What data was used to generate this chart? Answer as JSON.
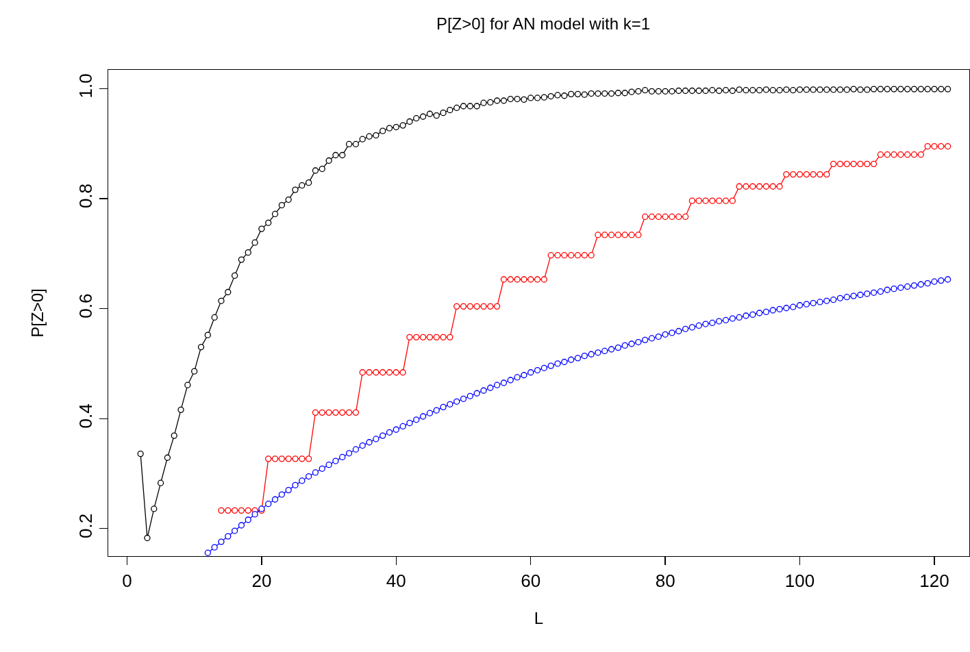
{
  "chart_data": {
    "type": "line",
    "title": "P[Z>0] for AN model with k=1",
    "xlabel": "L",
    "ylabel": "P[Z>0]",
    "marker": "circle",
    "line_style": "solid",
    "xlim": [
      -2.8,
      125.2
    ],
    "xticks": [
      0,
      20,
      40,
      60,
      80,
      100,
      120
    ],
    "ylim": [
      0.15,
      1.034
    ],
    "yticks": [
      {
        "value": 0.2,
        "label": "0.2"
      },
      {
        "value": 0.4,
        "label": "0.4"
      },
      {
        "value": 0.6,
        "label": "0.6"
      },
      {
        "value": 0.8,
        "label": "0.8"
      },
      {
        "value": 1.0,
        "label": "1.0"
      }
    ],
    "series": [
      {
        "color": "#000000",
        "x": [
          2,
          3,
          4,
          5,
          6,
          7,
          8,
          9,
          10,
          11,
          12,
          13,
          14,
          15,
          16,
          17,
          18,
          19,
          20,
          21,
          22,
          23,
          24,
          25,
          26,
          27,
          28,
          29,
          30,
          31,
          32,
          33,
          34,
          35,
          36,
          37,
          38,
          39,
          40,
          41,
          42,
          43,
          44,
          45,
          46,
          47,
          48,
          49,
          50,
          51,
          52,
          53,
          54,
          55,
          56,
          57,
          58,
          59,
          60,
          61,
          62,
          63,
          64,
          65,
          66,
          67,
          68,
          69,
          70,
          71,
          72,
          73,
          74,
          75,
          76,
          77,
          78,
          79,
          80,
          81,
          82,
          83,
          84,
          85,
          86,
          87,
          88,
          89,
          90,
          91,
          92,
          93,
          94,
          95,
          96,
          97,
          98,
          99,
          100,
          101,
          102,
          103,
          104,
          105,
          106,
          107,
          108,
          109,
          110,
          111,
          112,
          113,
          114,
          115,
          116,
          117,
          118,
          119,
          120,
          121,
          122
        ],
        "values": [
          0.336,
          0.183,
          0.236,
          0.283,
          0.329,
          0.369,
          0.416,
          0.461,
          0.486,
          0.53,
          0.552,
          0.584,
          0.614,
          0.63,
          0.66,
          0.689,
          0.702,
          0.72,
          0.745,
          0.756,
          0.772,
          0.788,
          0.798,
          0.816,
          0.824,
          0.829,
          0.851,
          0.854,
          0.869,
          0.879,
          0.879,
          0.899,
          0.899,
          0.908,
          0.913,
          0.915,
          0.923,
          0.928,
          0.93,
          0.933,
          0.94,
          0.946,
          0.949,
          0.954,
          0.951,
          0.956,
          0.961,
          0.965,
          0.968,
          0.968,
          0.968,
          0.974,
          0.975,
          0.978,
          0.978,
          0.981,
          0.981,
          0.98,
          0.983,
          0.983,
          0.984,
          0.986,
          0.988,
          0.987,
          0.99,
          0.99,
          0.989,
          0.991,
          0.991,
          0.991,
          0.991,
          0.992,
          0.992,
          0.994,
          0.995,
          0.997,
          0.995,
          0.995,
          0.995,
          0.995,
          0.996,
          0.996,
          0.996,
          0.996,
          0.996,
          0.997,
          0.996,
          0.997,
          0.996,
          0.998,
          0.997,
          0.997,
          0.997,
          0.998,
          0.997,
          0.997,
          0.998,
          0.997,
          0.998,
          0.998,
          0.998,
          0.998,
          0.998,
          0.998,
          0.998,
          0.998,
          0.999,
          0.998,
          0.998,
          0.999,
          0.999,
          0.999,
          0.999,
          0.999,
          0.999,
          0.999,
          0.999,
          0.999,
          0.999,
          0.999,
          0.999
        ]
      },
      {
        "color": "#ff0000",
        "x": [
          14,
          15,
          16,
          17,
          18,
          19,
          20,
          21,
          22,
          23,
          24,
          25,
          26,
          27,
          28,
          29,
          30,
          31,
          32,
          33,
          34,
          35,
          36,
          37,
          38,
          39,
          40,
          41,
          42,
          43,
          44,
          45,
          46,
          47,
          48,
          49,
          50,
          51,
          52,
          53,
          54,
          55,
          56,
          57,
          58,
          59,
          60,
          61,
          62,
          63,
          64,
          65,
          66,
          67,
          68,
          69,
          70,
          71,
          72,
          73,
          74,
          75,
          76,
          77,
          78,
          79,
          80,
          81,
          82,
          83,
          84,
          85,
          86,
          87,
          88,
          89,
          90,
          91,
          92,
          93,
          94,
          95,
          96,
          97,
          98,
          99,
          100,
          101,
          102,
          103,
          104,
          105,
          106,
          107,
          108,
          109,
          110,
          111,
          112,
          113,
          114,
          115,
          116,
          117,
          118,
          119,
          120,
          121,
          122
        ],
        "values": [
          0.233,
          0.233,
          0.233,
          0.233,
          0.233,
          0.233,
          0.233,
          0.327,
          0.327,
          0.327,
          0.327,
          0.327,
          0.327,
          0.327,
          0.411,
          0.411,
          0.411,
          0.411,
          0.411,
          0.411,
          0.411,
          0.484,
          0.484,
          0.484,
          0.484,
          0.484,
          0.484,
          0.484,
          0.548,
          0.548,
          0.548,
          0.548,
          0.548,
          0.548,
          0.548,
          0.604,
          0.604,
          0.604,
          0.604,
          0.604,
          0.604,
          0.604,
          0.653,
          0.653,
          0.653,
          0.653,
          0.653,
          0.653,
          0.653,
          0.697,
          0.697,
          0.697,
          0.697,
          0.697,
          0.697,
          0.697,
          0.734,
          0.734,
          0.734,
          0.734,
          0.734,
          0.734,
          0.734,
          0.767,
          0.767,
          0.767,
          0.767,
          0.767,
          0.767,
          0.767,
          0.796,
          0.796,
          0.796,
          0.796,
          0.796,
          0.796,
          0.796,
          0.822,
          0.822,
          0.822,
          0.822,
          0.822,
          0.822,
          0.822,
          0.844,
          0.844,
          0.844,
          0.844,
          0.844,
          0.844,
          0.844,
          0.863,
          0.863,
          0.863,
          0.863,
          0.863,
          0.863,
          0.863,
          0.88,
          0.88,
          0.88,
          0.88,
          0.88,
          0.88,
          0.88,
          0.895,
          0.895,
          0.895,
          0.895
        ]
      },
      {
        "color": "#0000ff",
        "x": [
          12,
          13,
          14,
          15,
          16,
          17,
          18,
          19,
          20,
          21,
          22,
          23,
          24,
          25,
          26,
          27,
          28,
          29,
          30,
          31,
          32,
          33,
          34,
          35,
          36,
          37,
          38,
          39,
          40,
          41,
          42,
          43,
          44,
          45,
          46,
          47,
          48,
          49,
          50,
          51,
          52,
          53,
          54,
          55,
          56,
          57,
          58,
          59,
          60,
          61,
          62,
          63,
          64,
          65,
          66,
          67,
          68,
          69,
          70,
          71,
          72,
          73,
          74,
          75,
          76,
          77,
          78,
          79,
          80,
          81,
          82,
          83,
          84,
          85,
          86,
          87,
          88,
          89,
          90,
          91,
          92,
          93,
          94,
          95,
          96,
          97,
          98,
          99,
          100,
          101,
          102,
          103,
          104,
          105,
          106,
          107,
          108,
          109,
          110,
          111,
          112,
          113,
          114,
          115,
          116,
          117,
          118,
          119,
          120,
          121,
          122
        ],
        "values": [
          0.156,
          0.166,
          0.176,
          0.186,
          0.196,
          0.206,
          0.216,
          0.226,
          0.236,
          0.245,
          0.253,
          0.262,
          0.27,
          0.279,
          0.287,
          0.295,
          0.302,
          0.309,
          0.316,
          0.323,
          0.33,
          0.337,
          0.344,
          0.351,
          0.357,
          0.363,
          0.369,
          0.375,
          0.38,
          0.386,
          0.392,
          0.398,
          0.404,
          0.41,
          0.415,
          0.421,
          0.426,
          0.431,
          0.436,
          0.441,
          0.446,
          0.451,
          0.456,
          0.461,
          0.465,
          0.47,
          0.475,
          0.479,
          0.484,
          0.488,
          0.492,
          0.496,
          0.5,
          0.503,
          0.507,
          0.51,
          0.514,
          0.517,
          0.52,
          0.523,
          0.526,
          0.529,
          0.533,
          0.536,
          0.539,
          0.543,
          0.546,
          0.549,
          0.553,
          0.556,
          0.559,
          0.563,
          0.566,
          0.569,
          0.572,
          0.574,
          0.577,
          0.579,
          0.582,
          0.584,
          0.587,
          0.589,
          0.592,
          0.594,
          0.597,
          0.599,
          0.601,
          0.603,
          0.606,
          0.608,
          0.61,
          0.612,
          0.614,
          0.616,
          0.619,
          0.621,
          0.623,
          0.625,
          0.627,
          0.629,
          0.631,
          0.634,
          0.636,
          0.638,
          0.64,
          0.642,
          0.644,
          0.646,
          0.649,
          0.651,
          0.653
        ]
      }
    ]
  }
}
